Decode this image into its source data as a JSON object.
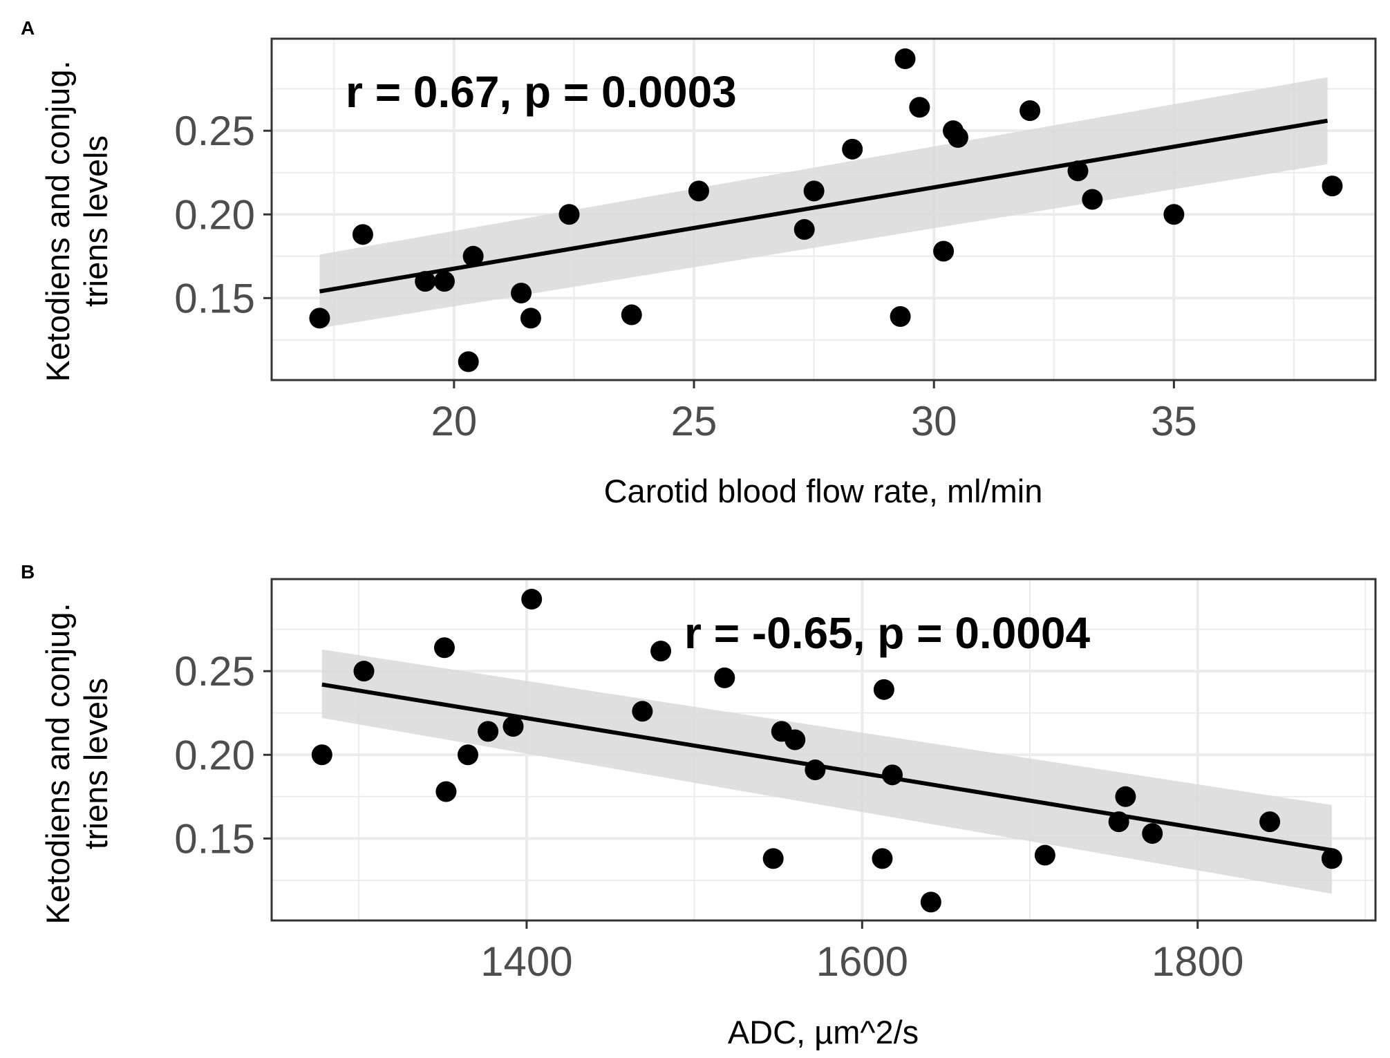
{
  "chart_data": [
    {
      "type": "scatter",
      "panel_label": "A",
      "annotation": "r = 0.67, p = 0.0003",
      "xlabel": "Carotid blood flow rate, ml/min",
      "ylabel_line1": "Ketodiens and conjug.",
      "ylabel_line2": "triens levels",
      "xlim": [
        16.2,
        39.2
      ],
      "ylim": [
        0.101,
        0.305
      ],
      "xticks": [
        {
          "value": 20,
          "label": "20"
        },
        {
          "value": 25,
          "label": "25"
        },
        {
          "value": 30,
          "label": "30"
        },
        {
          "value": 35,
          "label": "35"
        }
      ],
      "yticks": [
        {
          "value": 0.15,
          "label": "0.15"
        },
        {
          "value": 0.2,
          "label": "0.20"
        },
        {
          "value": 0.25,
          "label": "0.25"
        }
      ],
      "points": [
        [
          17.2,
          0.138
        ],
        [
          18.1,
          0.188
        ],
        [
          19.4,
          0.16
        ],
        [
          19.8,
          0.16
        ],
        [
          20.3,
          0.112
        ],
        [
          20.4,
          0.175
        ],
        [
          21.4,
          0.153
        ],
        [
          21.6,
          0.138
        ],
        [
          22.4,
          0.2
        ],
        [
          23.7,
          0.14
        ],
        [
          25.1,
          0.214
        ],
        [
          27.3,
          0.191
        ],
        [
          27.5,
          0.214
        ],
        [
          28.3,
          0.239
        ],
        [
          29.3,
          0.139
        ],
        [
          29.4,
          0.293
        ],
        [
          29.7,
          0.264
        ],
        [
          30.2,
          0.178
        ],
        [
          30.4,
          0.25
        ],
        [
          30.5,
          0.246
        ],
        [
          32.0,
          0.262
        ],
        [
          33.0,
          0.226
        ],
        [
          33.3,
          0.209
        ],
        [
          35.0,
          0.2
        ],
        [
          38.3,
          0.217
        ]
      ],
      "fit": {
        "x": [
          17.2,
          38.2
        ],
        "y": [
          0.154,
          0.256
        ]
      },
      "ci_band": {
        "x": [
          17.2,
          38.2
        ],
        "lower": [
          0.132,
          0.23
        ],
        "upper": [
          0.176,
          0.282
        ]
      },
      "colors": {
        "points": "#000000",
        "line": "#000000",
        "band": "#d9d9d9",
        "grid": "#ebebeb",
        "border": "#333333"
      }
    },
    {
      "type": "scatter",
      "panel_label": "B",
      "annotation": "r = -0.65, p = 0.0004",
      "xlabel": "ADC, µm^2/s",
      "ylabel_line1": "Ketodiens and conjug.",
      "ylabel_line2": "triens levels",
      "xlim": [
        1248,
        1906
      ],
      "ylim": [
        0.101,
        0.305
      ],
      "xticks": [
        {
          "value": 1400,
          "label": "1400"
        },
        {
          "value": 1600,
          "label": "1600"
        },
        {
          "value": 1800,
          "label": "1800"
        }
      ],
      "yticks": [
        {
          "value": 0.15,
          "label": "0.15"
        },
        {
          "value": 0.2,
          "label": "0.20"
        },
        {
          "value": 0.25,
          "label": "0.25"
        }
      ],
      "points": [
        [
          1278,
          0.2
        ],
        [
          1303,
          0.25
        ],
        [
          1351,
          0.264
        ],
        [
          1352,
          0.178
        ],
        [
          1365,
          0.2
        ],
        [
          1377,
          0.214
        ],
        [
          1392,
          0.217
        ],
        [
          1403,
          0.293
        ],
        [
          1469,
          0.226
        ],
        [
          1480,
          0.262
        ],
        [
          1518,
          0.246
        ],
        [
          1547,
          0.138
        ],
        [
          1552,
          0.214
        ],
        [
          1560,
          0.209
        ],
        [
          1572,
          0.191
        ],
        [
          1612,
          0.138
        ],
        [
          1613,
          0.239
        ],
        [
          1618,
          0.188
        ],
        [
          1641,
          0.112
        ],
        [
          1709,
          0.14
        ],
        [
          1753,
          0.16
        ],
        [
          1757,
          0.175
        ],
        [
          1773,
          0.153
        ],
        [
          1843,
          0.16
        ],
        [
          1880,
          0.138
        ]
      ],
      "fit": {
        "x": [
          1278,
          1880
        ],
        "y": [
          0.242,
          0.143
        ]
      },
      "ci_band": {
        "x": [
          1278,
          1880
        ],
        "lower": [
          0.222,
          0.117
        ],
        "upper": [
          0.263,
          0.17
        ]
      },
      "colors": {
        "points": "#000000",
        "line": "#000000",
        "band": "#d9d9d9",
        "grid": "#ebebeb",
        "border": "#333333"
      }
    }
  ]
}
